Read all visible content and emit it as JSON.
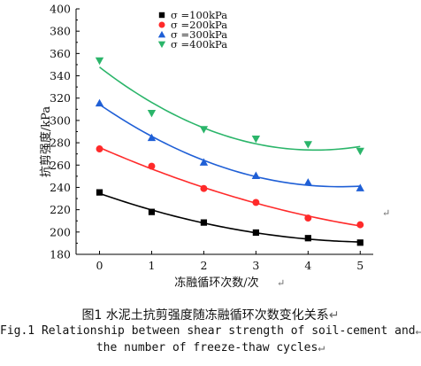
{
  "chart_data": {
    "type": "scatter",
    "fit": "curve",
    "xlabel": "冻融循环次数/次",
    "ylabel": "抗剪强度/kPa",
    "xlim": [
      -0.45,
      5.25
    ],
    "ylim": [
      180,
      400
    ],
    "xticks": [
      0,
      1,
      2,
      3,
      4,
      5
    ],
    "yticks": [
      180,
      200,
      220,
      240,
      260,
      280,
      300,
      320,
      340,
      360,
      380,
      400
    ],
    "grid": false,
    "legend_position": "top-left",
    "series": [
      {
        "name": "σ =100kPa",
        "marker": "square",
        "color": "#000000",
        "x": [
          0,
          1,
          2,
          3,
          4,
          5
        ],
        "values": [
          235.5,
          218,
          208.5,
          199.5,
          194.5,
          190.5
        ]
      },
      {
        "name": "σ =200kPa",
        "marker": "circle",
        "color": "#ff2a2a",
        "x": [
          0,
          1,
          2,
          3,
          4,
          5
        ],
        "values": [
          274.5,
          259,
          239,
          226.5,
          212.5,
          206.5
        ]
      },
      {
        "name": "σ =300kPa",
        "marker": "triangle-up",
        "color": "#1f5fd6",
        "x": [
          0,
          1,
          2,
          3,
          4,
          5
        ],
        "values": [
          315.5,
          284.5,
          262.5,
          250.5,
          244.5,
          239.5
        ]
      },
      {
        "name": "σ =400kPa",
        "marker": "triangle-down",
        "color": "#2bb56a",
        "x": [
          0,
          1,
          2,
          3,
          4,
          5
        ],
        "values": [
          353.5,
          306.5,
          292,
          283.5,
          278.5,
          272.5
        ]
      }
    ]
  },
  "captions": {
    "zh": "图1  水泥土抗剪强度随冻融循环次数变化关系",
    "en_line1": "Fig.1  Relationship between shear strength of soil-cement and",
    "en_line2": "the number of freeze-thaw cycles"
  },
  "return_mark": "↵"
}
